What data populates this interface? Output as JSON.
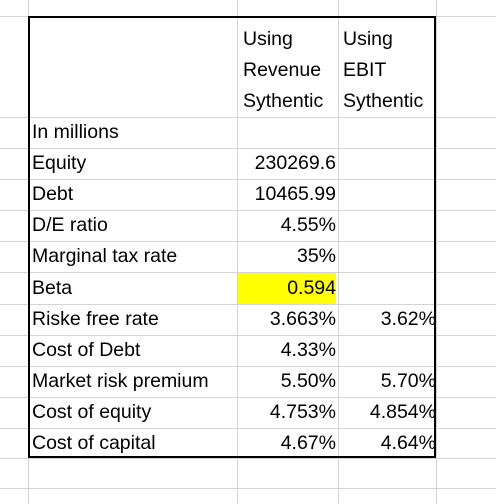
{
  "header": {
    "colA": [
      "Using",
      "Revenue",
      "Sythentic"
    ],
    "colB": [
      "Using",
      "EBIT",
      "Sythentic"
    ]
  },
  "rows": [
    {
      "label": "In millions",
      "a": "",
      "b": ""
    },
    {
      "label": "Equity",
      "a": "230269.6",
      "b": ""
    },
    {
      "label": "Debt",
      "a": "10465.99",
      "b": ""
    },
    {
      "label": "D/E ratio",
      "a": "4.55%",
      "b": ""
    },
    {
      "label": "Marginal tax rate",
      "a": "35%",
      "b": ""
    },
    {
      "label": "Beta",
      "a": "0.594",
      "b": ""
    },
    {
      "label": "Riske free rate",
      "a": "3.663%",
      "b": "3.62%"
    },
    {
      "label": "Cost of Debt",
      "a": "4.33%",
      "b": ""
    },
    {
      "label": "Market risk premium",
      "a": "5.50%",
      "b": "5.70%"
    },
    {
      "label": "Cost of equity",
      "a": "4.753%",
      "b": "4.854%"
    },
    {
      "label": "Cost of capital",
      "a": "4.67%",
      "b": "4.64%"
    }
  ],
  "colors": {
    "highlight": "#ffff00",
    "gridline": "#d4d4d4",
    "border": "#000000"
  }
}
